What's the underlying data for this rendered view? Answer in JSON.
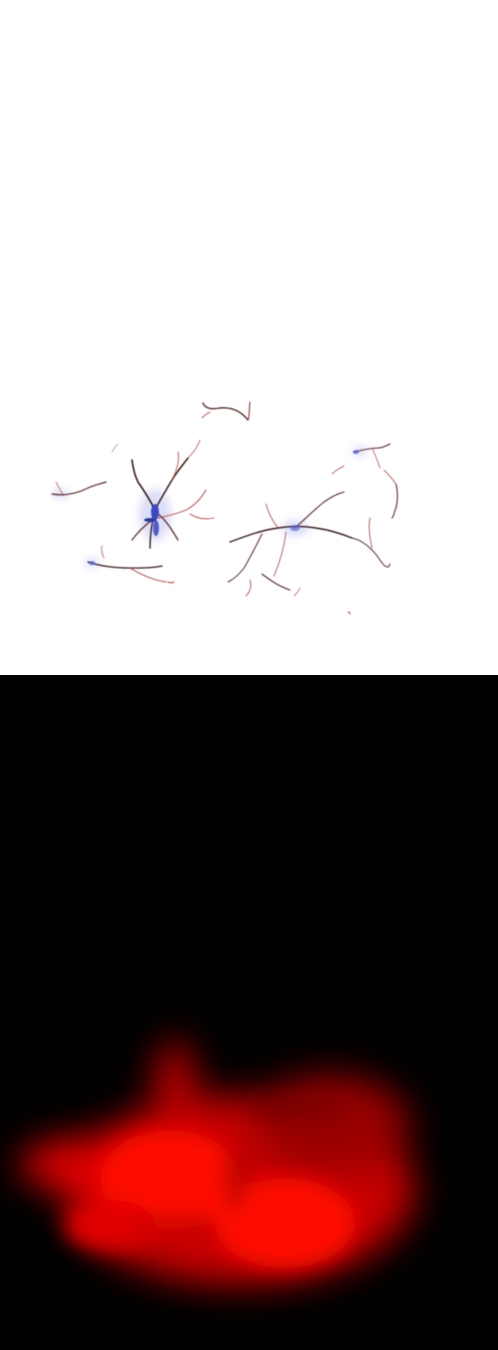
{
  "figure": {
    "panels": [
      {
        "id": "top",
        "content": "neuron-stain-micrograph",
        "background": "#ffffff",
        "stain_colors": {
          "branch_dark": "#3a1a1c",
          "branch_red": "#b43a3a",
          "soma_blue": "#3b46c8",
          "haze_blue": "#9aa3e6"
        }
      },
      {
        "id": "bottom",
        "content": "red-fluorescence-blur",
        "background": "#000000",
        "glow_color": "#ff0000"
      }
    ]
  }
}
